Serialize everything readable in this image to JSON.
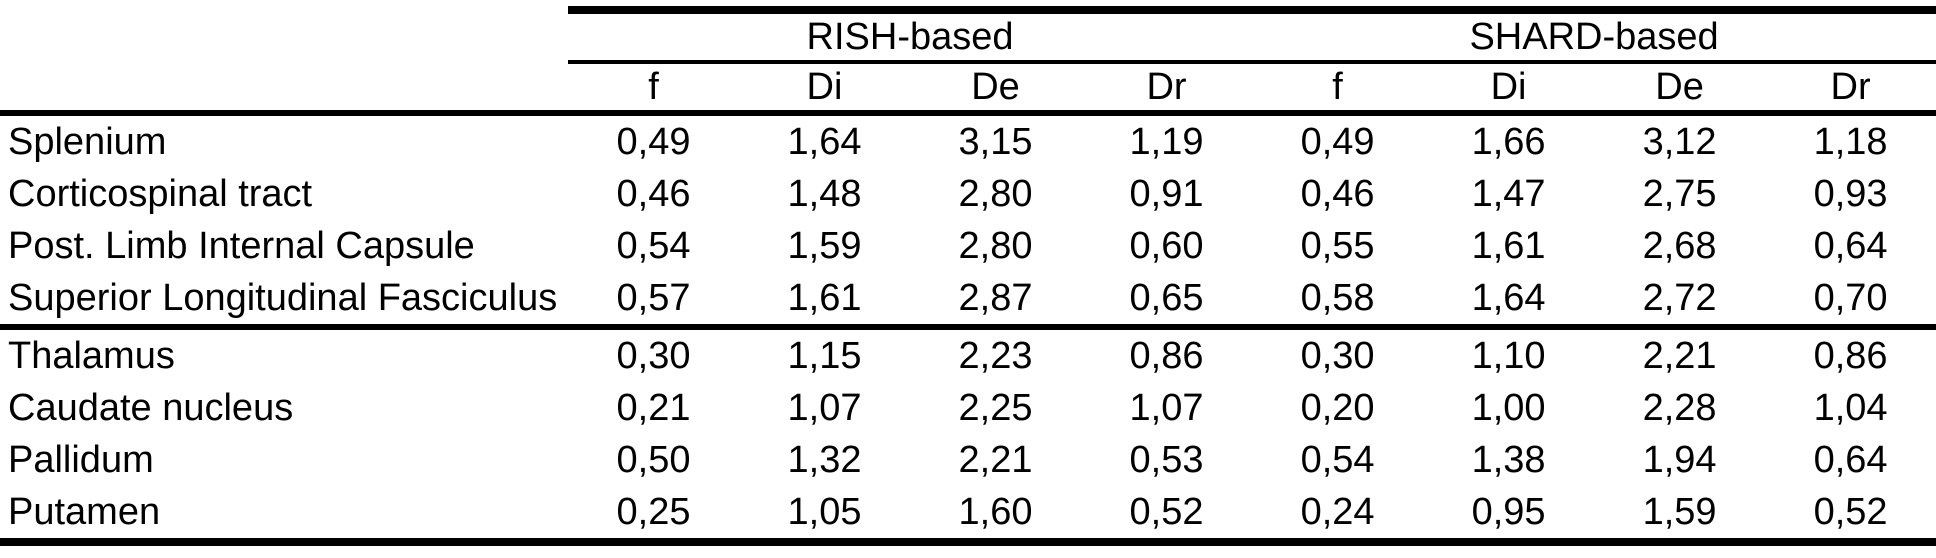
{
  "table": {
    "groups": [
      {
        "label": "RISH-based"
      },
      {
        "label": "SHARD-based"
      }
    ],
    "columns": [
      "f",
      "Di",
      "De",
      "Dr",
      "f",
      "Di",
      "De",
      "Dr"
    ],
    "rows": [
      {
        "label": "Splenium",
        "values": [
          "0,49",
          "1,64",
          "3,15",
          "1,19",
          "0,49",
          "1,66",
          "3,12",
          "1,18"
        ]
      },
      {
        "label": "Corticospinal tract",
        "values": [
          "0,46",
          "1,48",
          "2,80",
          "0,91",
          "0,46",
          "1,47",
          "2,75",
          "0,93"
        ]
      },
      {
        "label": "Post. Limb Internal Capsule",
        "values": [
          "0,54",
          "1,59",
          "2,80",
          "0,60",
          "0,55",
          "1,61",
          "2,68",
          "0,64"
        ]
      },
      {
        "label": "Superior Longitudinal Fasciculus",
        "values": [
          "0,57",
          "1,61",
          "2,87",
          "0,65",
          "0,58",
          "1,64",
          "2,72",
          "0,70"
        ]
      },
      {
        "label": "Thalamus",
        "values": [
          "0,30",
          "1,15",
          "2,23",
          "0,86",
          "0,30",
          "1,10",
          "2,21",
          "0,86"
        ]
      },
      {
        "label": "Caudate nucleus",
        "values": [
          "0,21",
          "1,07",
          "2,25",
          "1,07",
          "0,20",
          "1,00",
          "2,28",
          "1,04"
        ]
      },
      {
        "label": "Pallidum",
        "values": [
          "0,50",
          "1,32",
          "2,21",
          "0,53",
          "0,54",
          "1,38",
          "1,94",
          "0,64"
        ]
      },
      {
        "label": "Putamen",
        "values": [
          "0,25",
          "1,05",
          "1,60",
          "0,52",
          "0,24",
          "0,95",
          "1,59",
          "0,52"
        ]
      }
    ],
    "colors": {
      "text": "#000000",
      "background": "#ffffff",
      "rule": "#000000"
    }
  },
  "chart_data": {
    "type": "table",
    "title": "",
    "column_groups": [
      "RISH-based",
      "SHARD-based"
    ],
    "columns": [
      "f",
      "Di",
      "De",
      "Dr",
      "f",
      "Di",
      "De",
      "Dr"
    ],
    "decimal_separator": ",",
    "rows": [
      {
        "region": "Splenium",
        "RISH": {
          "f": 0.49,
          "Di": 1.64,
          "De": 3.15,
          "Dr": 1.19
        },
        "SHARD": {
          "f": 0.49,
          "Di": 1.66,
          "De": 3.12,
          "Dr": 1.18
        }
      },
      {
        "region": "Corticospinal tract",
        "RISH": {
          "f": 0.46,
          "Di": 1.48,
          "De": 2.8,
          "Dr": 0.91
        },
        "SHARD": {
          "f": 0.46,
          "Di": 1.47,
          "De": 2.75,
          "Dr": 0.93
        }
      },
      {
        "region": "Post. Limb Internal Capsule",
        "RISH": {
          "f": 0.54,
          "Di": 1.59,
          "De": 2.8,
          "Dr": 0.6
        },
        "SHARD": {
          "f": 0.55,
          "Di": 1.61,
          "De": 2.68,
          "Dr": 0.64
        }
      },
      {
        "region": "Superior Longitudinal Fasciculus",
        "RISH": {
          "f": 0.57,
          "Di": 1.61,
          "De": 2.87,
          "Dr": 0.65
        },
        "SHARD": {
          "f": 0.58,
          "Di": 1.64,
          "De": 2.72,
          "Dr": 0.7
        }
      },
      {
        "region": "Thalamus",
        "RISH": {
          "f": 0.3,
          "Di": 1.15,
          "De": 2.23,
          "Dr": 0.86
        },
        "SHARD": {
          "f": 0.3,
          "Di": 1.1,
          "De": 2.21,
          "Dr": 0.86
        }
      },
      {
        "region": "Caudate nucleus",
        "RISH": {
          "f": 0.21,
          "Di": 1.07,
          "De": 2.25,
          "Dr": 1.07
        },
        "SHARD": {
          "f": 0.2,
          "Di": 1.0,
          "De": 2.28,
          "Dr": 1.04
        }
      },
      {
        "region": "Pallidum",
        "RISH": {
          "f": 0.5,
          "Di": 1.32,
          "De": 2.21,
          "Dr": 0.53
        },
        "SHARD": {
          "f": 0.54,
          "Di": 1.38,
          "De": 1.94,
          "Dr": 0.64
        }
      },
      {
        "region": "Putamen",
        "RISH": {
          "f": 0.25,
          "Di": 1.05,
          "De": 1.6,
          "Dr": 0.52
        },
        "SHARD": {
          "f": 0.24,
          "Di": 0.95,
          "De": 1.59,
          "Dr": 0.52
        }
      }
    ]
  }
}
